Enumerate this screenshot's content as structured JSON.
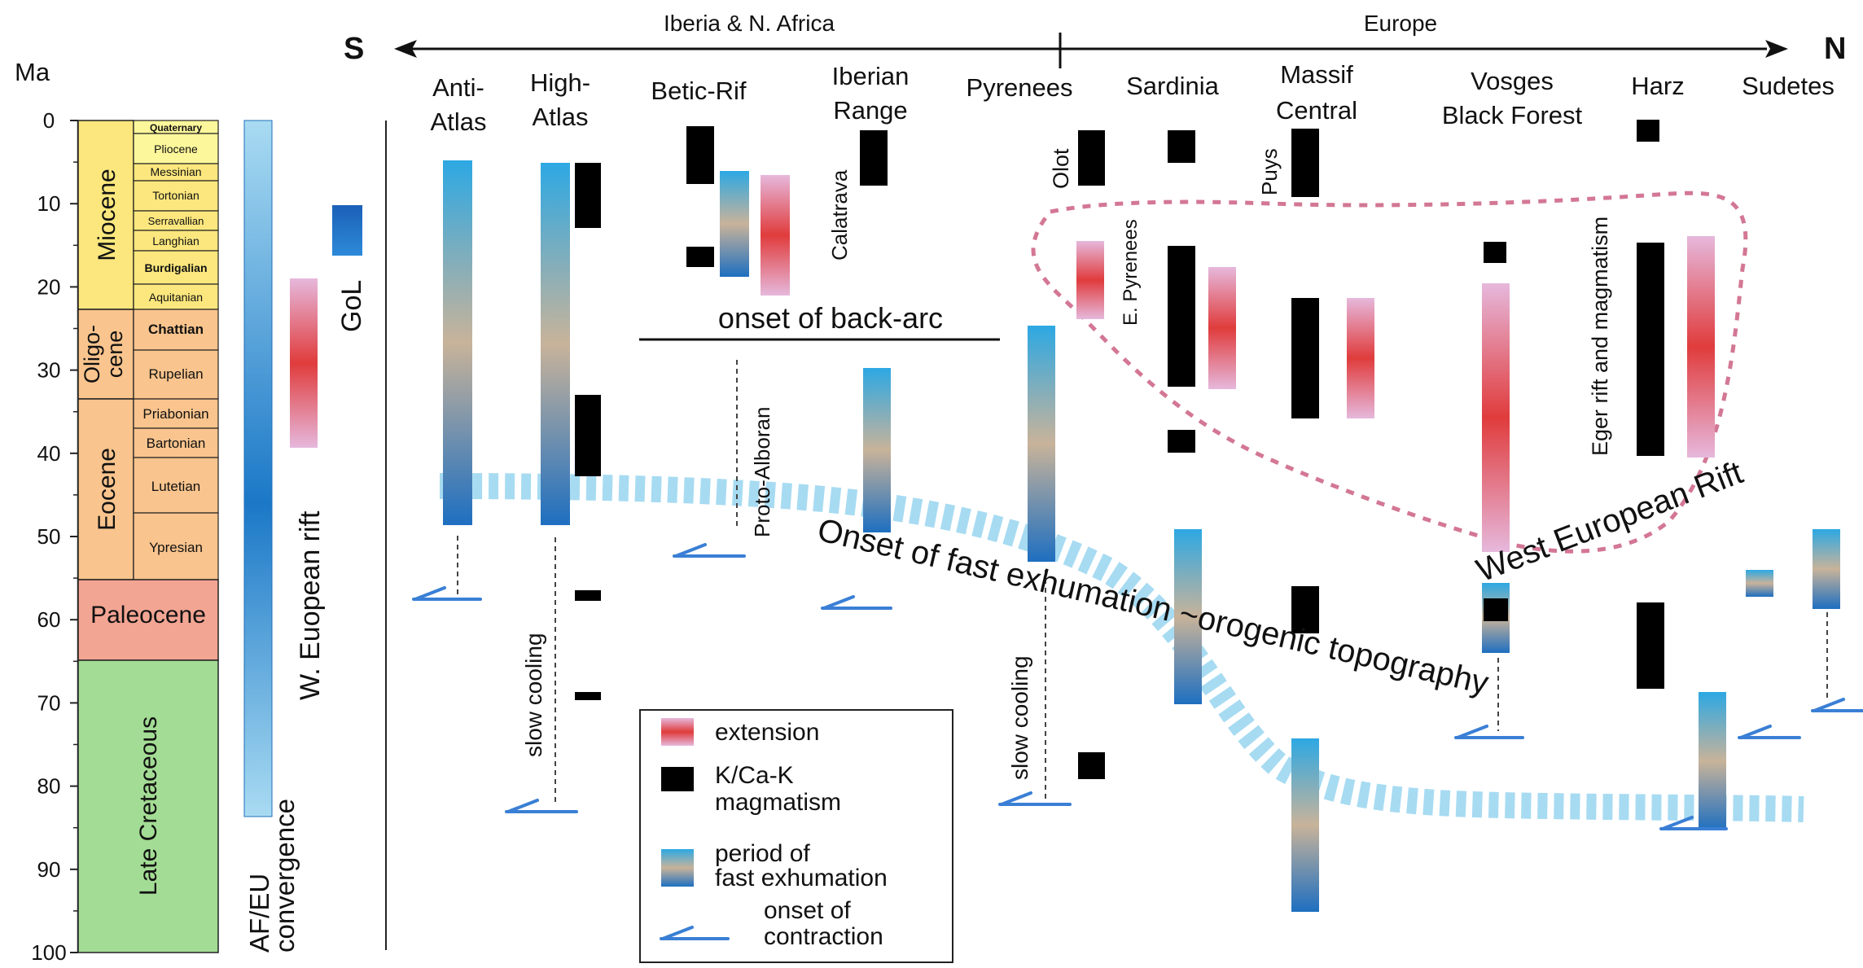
{
  "colors": {
    "extension": "#e03c3c",
    "extension_light": "#e6b8dc",
    "magmatism": "#000000",
    "exhumation_top": "#2da8e3",
    "exhumation_mid": "#c8b39a",
    "exhumation_bottom": "#1e6fc0",
    "contraction": "#3a7fd5",
    "paleocene": "#f3a593",
    "late_cretaceous": "#a3dc94",
    "paleogene": "#f9c48d",
    "neogene": "#fbe77d",
    "quaternary": "#fdf79b",
    "dashed_outline": "#c44a70"
  },
  "axis": {
    "unit": "Ma",
    "ticks": [
      "0",
      "10",
      "20",
      "30",
      "40",
      "50",
      "60",
      "70",
      "80",
      "90",
      "100"
    ]
  },
  "timescale": {
    "epochs": [
      {
        "name": "Miocene"
      },
      {
        "name": "Oligo-",
        "name2": "cene"
      },
      {
        "name": "Eocene"
      },
      {
        "name": "Paleocene"
      },
      {
        "name": "Late Cretaceous"
      }
    ],
    "stages": [
      "Quaternary",
      "Pliocene",
      "Messinian",
      "Tortonian",
      "Serravallian",
      "Langhian",
      "Burdigalian",
      "Aquitanian",
      "Chattian",
      "Rupelian",
      "Priabonian",
      "Bartonian",
      "Lutetian",
      "Ypresian"
    ]
  },
  "side_bars": {
    "convergence_label_1": "AF/EU",
    "convergence_label_2": "convergence",
    "rift_label": "W. Euopean rift",
    "gol_label": "GoL"
  },
  "direction": {
    "south": "S",
    "north": "N",
    "region_left": "Iberia & N. Africa",
    "region_right": "Europe"
  },
  "columns": [
    {
      "line1": "Anti-",
      "line2": "Atlas"
    },
    {
      "line1": "High-",
      "line2": "Atlas"
    },
    {
      "line1": "Betic-Rif",
      "line2": ""
    },
    {
      "line1": "Iberian",
      "line2": "Range"
    },
    {
      "line1": "Pyrenees",
      "line2": ""
    },
    {
      "line1": "Sardinia",
      "line2": ""
    },
    {
      "line1": "Massif",
      "line2": "Central"
    },
    {
      "line1": "Vosges",
      "line2": "Black Forest"
    },
    {
      "line1": "Harz",
      "line2": ""
    },
    {
      "line1": "Sudetes",
      "line2": ""
    }
  ],
  "annotations": {
    "olot": "Olot",
    "calatrava": "Calatrava",
    "e_pyrenees": "E. Pyrenees",
    "puys": "Puys",
    "eger": "Eger rift and magmatism",
    "proto_alboran": "Proto-Alboran",
    "onset_back_arc": "onset of back-arc",
    "slow_cooling": "slow cooling",
    "onset_fast_exhumation": "Onset of fast exhumation ~orogenic topography",
    "west_european_rift": "West European Rift"
  },
  "legend": {
    "extension": "extension",
    "magmatism_1": "K/Ca-K",
    "magmatism_2": "magmatism",
    "exhumation_1": "period of",
    "exhumation_2": "fast exhumation",
    "contraction_1": "onset of",
    "contraction_2": "contraction"
  }
}
